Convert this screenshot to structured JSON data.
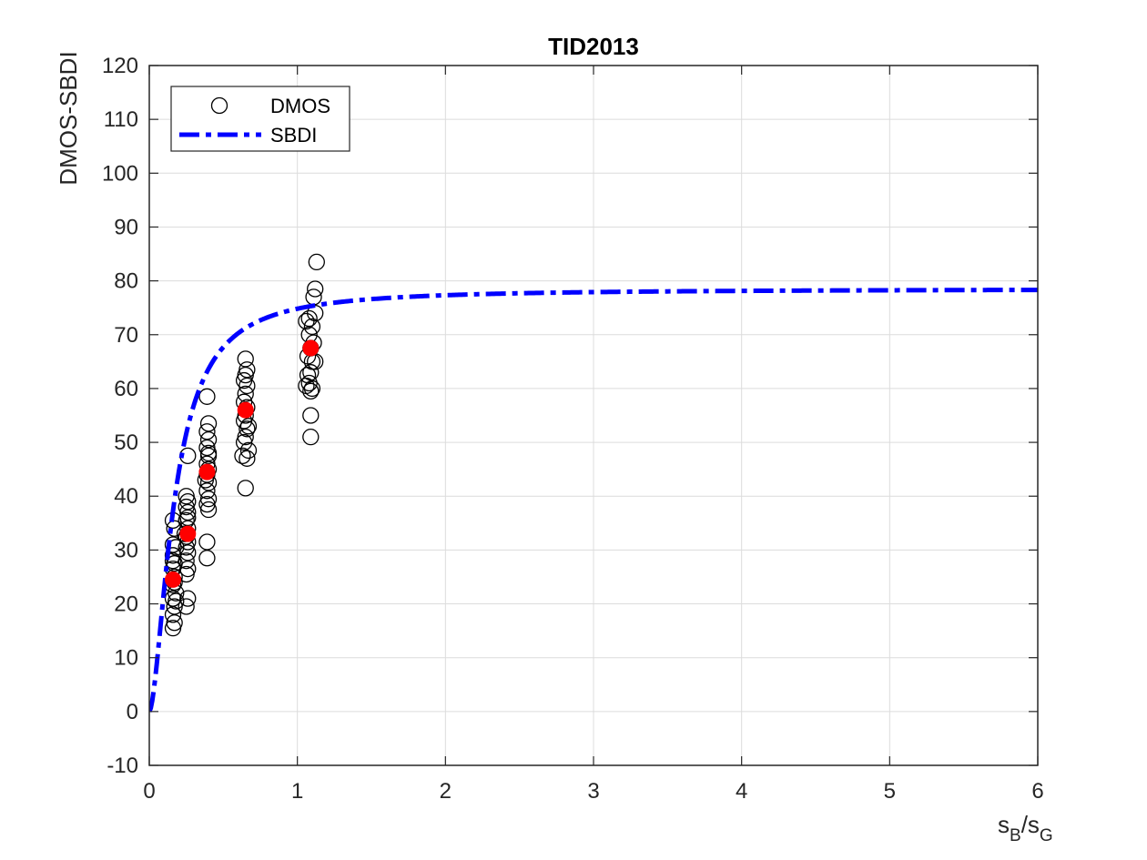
{
  "chart_data": {
    "type": "scatter",
    "title": "TID2013",
    "xlabel": {
      "base": "s",
      "sub1": "B",
      "sep": "/s",
      "sub2": "G"
    },
    "ylabel": "DMOS-SBDI",
    "xlim": [
      0,
      6
    ],
    "ylim": [
      -10,
      120
    ],
    "xticks": [
      0,
      1,
      2,
      3,
      4,
      5,
      6
    ],
    "yticks": [
      -10,
      0,
      10,
      20,
      30,
      40,
      50,
      60,
      70,
      80,
      90,
      100,
      110,
      120
    ],
    "grid": true,
    "legend": {
      "placement": "top-left",
      "entries": [
        "DMOS",
        "SBDI"
      ]
    },
    "colors": {
      "dmos": "#000000",
      "sbdi": "#0000ff",
      "mean": "#ff0000"
    },
    "series": [
      {
        "name": "DMOS",
        "marker": "open-circle",
        "points": [
          [
            0.16,
            15.5
          ],
          [
            0.17,
            16.5
          ],
          [
            0.16,
            18.0
          ],
          [
            0.17,
            19.5
          ],
          [
            0.16,
            21.0
          ],
          [
            0.18,
            22.0
          ],
          [
            0.16,
            23.5
          ],
          [
            0.17,
            25.0
          ],
          [
            0.16,
            26.5
          ],
          [
            0.17,
            27.5
          ],
          [
            0.16,
            29.0
          ],
          [
            0.18,
            30.5
          ],
          [
            0.16,
            31.0
          ],
          [
            0.17,
            34.0
          ],
          [
            0.16,
            35.5
          ],
          [
            0.18,
            20.5
          ],
          [
            0.17,
            24.0
          ],
          [
            0.16,
            28.0
          ],
          [
            0.25,
            19.5
          ],
          [
            0.26,
            21.0
          ],
          [
            0.25,
            25.5
          ],
          [
            0.26,
            26.5
          ],
          [
            0.25,
            28.0
          ],
          [
            0.26,
            29.5
          ],
          [
            0.25,
            30.5
          ],
          [
            0.26,
            31.5
          ],
          [
            0.25,
            32.5
          ],
          [
            0.26,
            34.0
          ],
          [
            0.25,
            35.5
          ],
          [
            0.26,
            37.0
          ],
          [
            0.25,
            38.0
          ],
          [
            0.26,
            39.0
          ],
          [
            0.25,
            40.0
          ],
          [
            0.26,
            47.5
          ],
          [
            0.24,
            33.0
          ],
          [
            0.26,
            36.0
          ],
          [
            0.39,
            28.5
          ],
          [
            0.39,
            31.5
          ],
          [
            0.4,
            37.5
          ],
          [
            0.39,
            38.5
          ],
          [
            0.4,
            39.5
          ],
          [
            0.39,
            41.0
          ],
          [
            0.4,
            42.5
          ],
          [
            0.39,
            44.0
          ],
          [
            0.4,
            45.0
          ],
          [
            0.39,
            46.0
          ],
          [
            0.4,
            47.5
          ],
          [
            0.39,
            49.0
          ],
          [
            0.4,
            50.5
          ],
          [
            0.39,
            52.0
          ],
          [
            0.4,
            53.5
          ],
          [
            0.39,
            58.5
          ],
          [
            0.38,
            43.0
          ],
          [
            0.4,
            48.0
          ],
          [
            0.65,
            41.5
          ],
          [
            0.63,
            47.5
          ],
          [
            0.66,
            47.0
          ],
          [
            0.67,
            48.5
          ],
          [
            0.64,
            50.0
          ],
          [
            0.65,
            51.0
          ],
          [
            0.66,
            52.5
          ],
          [
            0.64,
            54.0
          ],
          [
            0.65,
            55.0
          ],
          [
            0.66,
            56.5
          ],
          [
            0.64,
            57.5
          ],
          [
            0.65,
            59.0
          ],
          [
            0.66,
            60.5
          ],
          [
            0.64,
            61.5
          ],
          [
            0.65,
            62.5
          ],
          [
            0.66,
            63.5
          ],
          [
            0.65,
            65.5
          ],
          [
            0.67,
            53.0
          ],
          [
            1.09,
            51.0
          ],
          [
            1.09,
            55.0
          ],
          [
            1.09,
            59.5
          ],
          [
            1.1,
            60.0
          ],
          [
            1.06,
            60.5
          ],
          [
            1.08,
            61.0
          ],
          [
            1.07,
            62.5
          ],
          [
            1.09,
            63.0
          ],
          [
            1.1,
            65.0
          ],
          [
            1.12,
            65.0
          ],
          [
            1.07,
            66.0
          ],
          [
            1.09,
            67.5
          ],
          [
            1.11,
            68.5
          ],
          [
            1.08,
            70.0
          ],
          [
            1.1,
            71.5
          ],
          [
            1.06,
            72.5
          ],
          [
            1.08,
            73.0
          ],
          [
            1.12,
            74.0
          ],
          [
            1.11,
            77.0
          ],
          [
            1.12,
            78.5
          ],
          [
            1.13,
            83.5
          ]
        ]
      },
      {
        "name": "SBDI",
        "line": "dash-dot",
        "model": {
          "a": 78.5,
          "k": 0.17,
          "n": 1.7
        }
      },
      {
        "marker": "filled-circle",
        "points": [
          [
            0.16,
            24.5
          ],
          [
            0.26,
            33.0
          ],
          [
            0.39,
            44.5
          ],
          [
            0.65,
            56.0
          ],
          [
            1.09,
            67.5
          ]
        ]
      }
    ]
  }
}
